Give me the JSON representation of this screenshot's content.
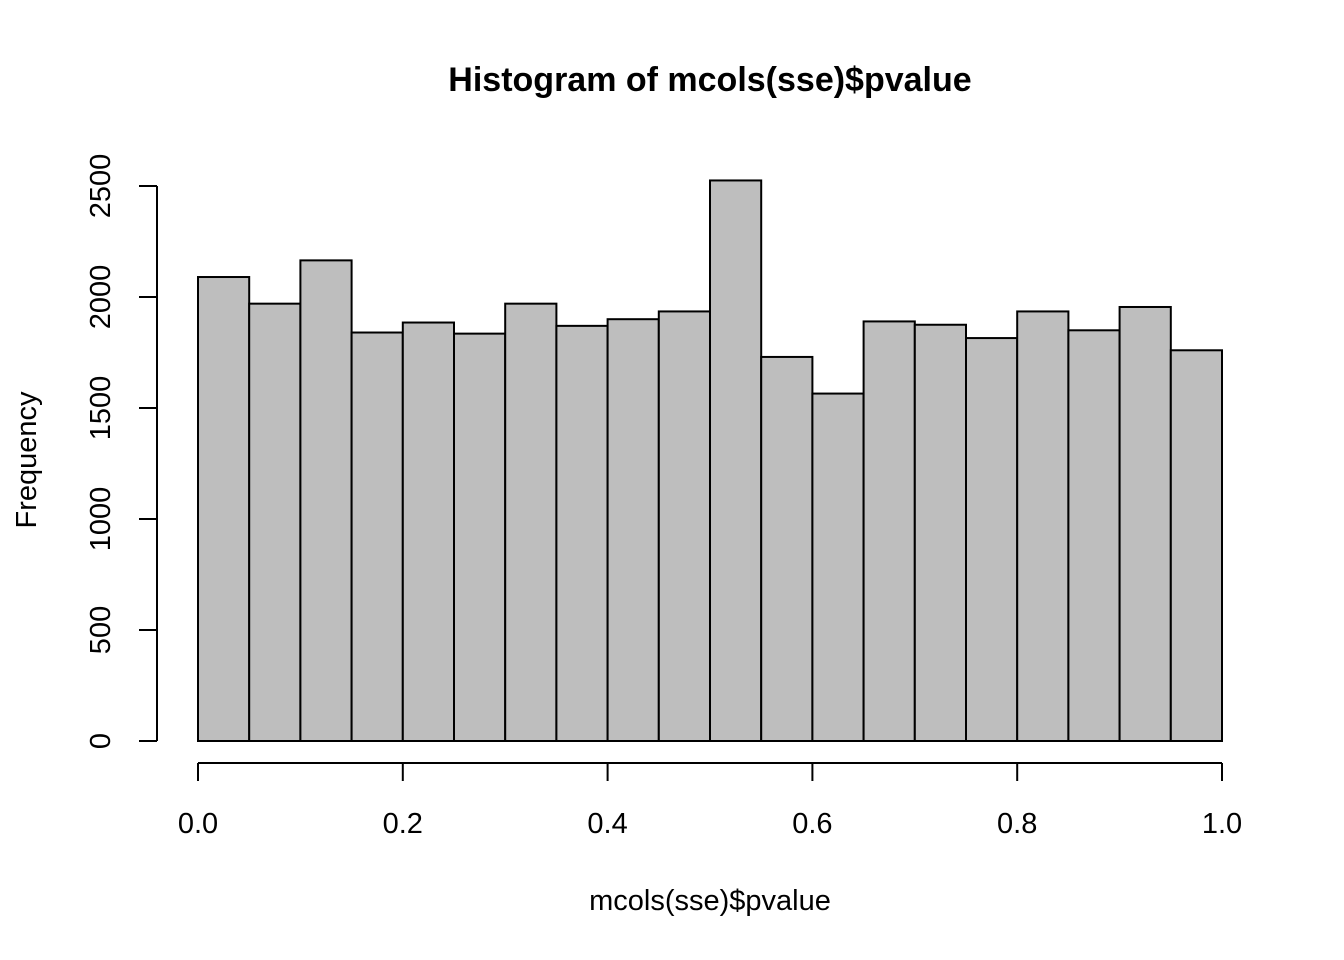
{
  "chart_data": {
    "type": "bar",
    "title": "Histogram of mcols(sse)$pvalue",
    "xlabel": "mcols(sse)$pvalue",
    "ylabel": "Frequency",
    "bin_edges": [
      0.0,
      0.05,
      0.1,
      0.15,
      0.2,
      0.25,
      0.3,
      0.35,
      0.4,
      0.45,
      0.5,
      0.55,
      0.6,
      0.65,
      0.7,
      0.75,
      0.8,
      0.85,
      0.9,
      0.95,
      1.0
    ],
    "values": [
      2090,
      1970,
      2165,
      1840,
      1885,
      1835,
      1970,
      1870,
      1900,
      1935,
      2525,
      1730,
      1565,
      1890,
      1875,
      1815,
      1935,
      1850,
      1955,
      1760
    ],
    "xlim": [
      0,
      1
    ],
    "ylim": [
      0,
      2500
    ],
    "x_ticks": [
      "0.0",
      "0.2",
      "0.4",
      "0.6",
      "0.8",
      "1.0"
    ],
    "y_ticks": [
      "0",
      "500",
      "1000",
      "1500",
      "2000",
      "2500"
    ],
    "bar_color": "#bebebe",
    "grid": false
  }
}
